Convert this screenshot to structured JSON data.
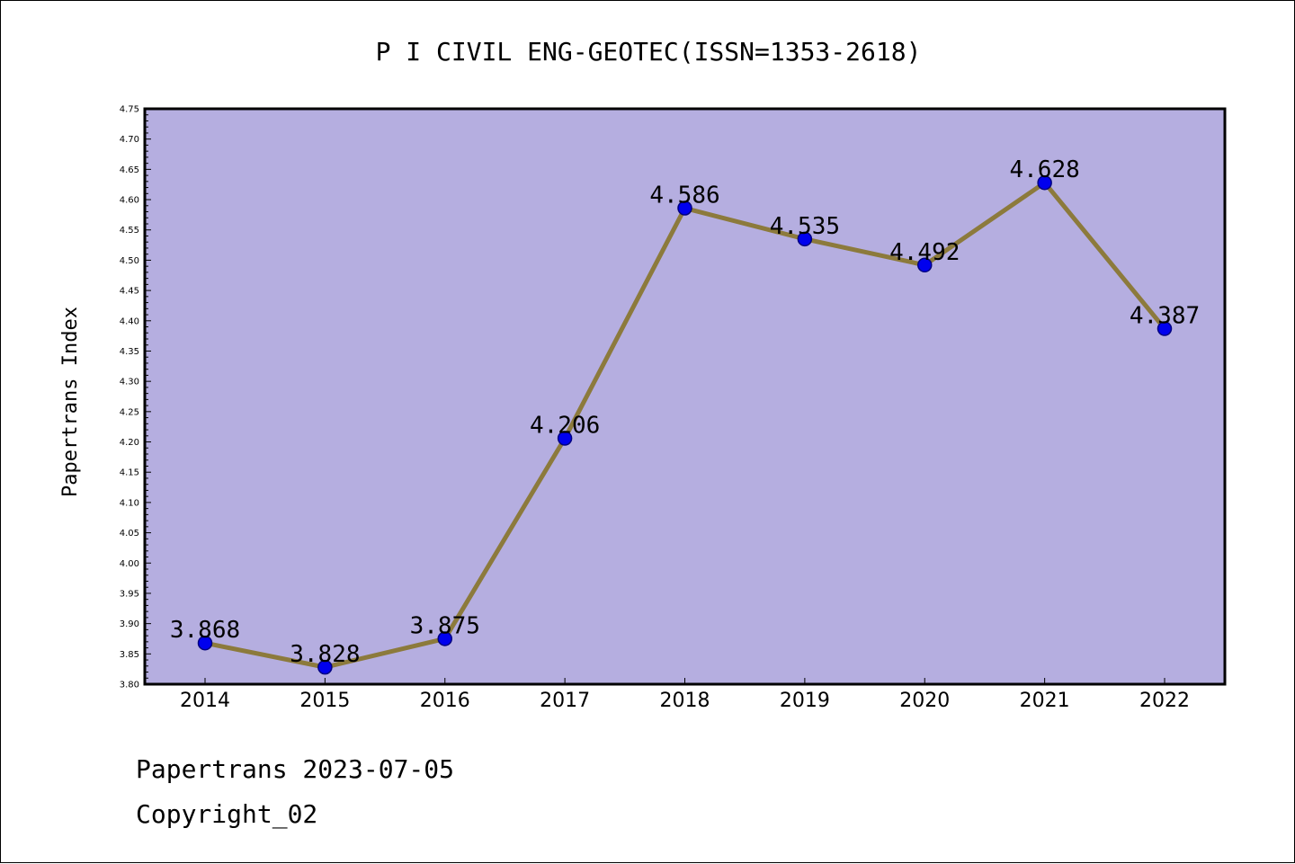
{
  "chart_data": {
    "type": "line",
    "title": "P I CIVIL ENG-GEOTEC(ISSN=1353-2618)",
    "ylabel": "Papertrans Index",
    "xlabel": "",
    "categories": [
      "2014",
      "2015",
      "2016",
      "2017",
      "2018",
      "2019",
      "2020",
      "2021",
      "2022"
    ],
    "values": [
      3.868,
      3.828,
      3.875,
      4.206,
      4.586,
      4.535,
      4.492,
      4.628,
      4.387
    ],
    "data_labels": [
      "3.868",
      "3.828",
      "3.875",
      "4.206",
      "4.586",
      "4.535",
      "4.492",
      "4.628",
      "4.387"
    ],
    "ylim": [
      3.8,
      4.75
    ],
    "yticks": [
      "3.80",
      "3.85",
      "3.90",
      "3.95",
      "4.00",
      "4.05",
      "4.10",
      "4.15",
      "4.20",
      "4.25",
      "4.30",
      "4.35",
      "4.40",
      "4.45",
      "4.50",
      "4.55",
      "4.60",
      "4.65",
      "4.70",
      "4.75"
    ],
    "grid": false,
    "legend": "none",
    "colors": {
      "plot_background": "#b5aee0",
      "line": "#8c7a3c",
      "marker": "#0000ee",
      "marker_edge": "#000080"
    }
  },
  "footer": {
    "date_line": "Papertrans 2023-07-05",
    "copyright_line": "Copyright_02"
  }
}
